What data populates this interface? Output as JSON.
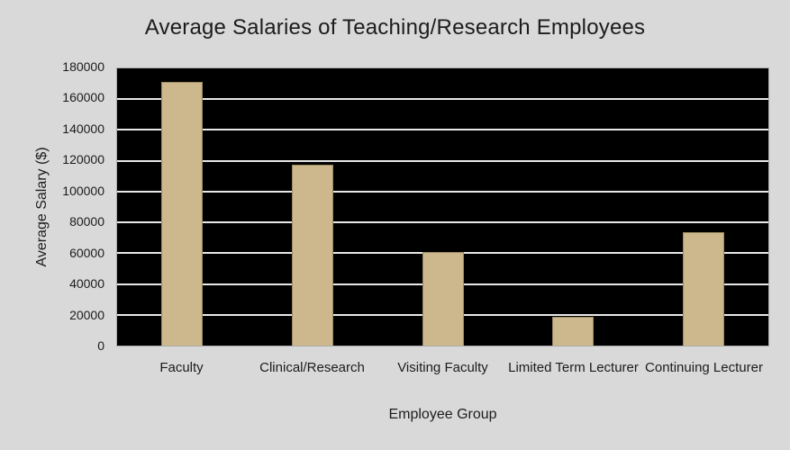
{
  "page": {
    "background_color": "#d9d9d9"
  },
  "chart_data": {
    "type": "bar",
    "title": "Average Salaries of Teaching/Research Employees",
    "xlabel": "Employee Group",
    "ylabel": "Average Salary ($)",
    "categories": [
      "Faculty",
      "Clinical/Research",
      "Visiting Faculty",
      "Limited Term Lecturer",
      "Continuing Lecturer"
    ],
    "values": [
      171000,
      117500,
      61000,
      18500,
      73500
    ],
    "ylim": [
      0,
      180000
    ],
    "yticks": [
      0,
      20000,
      40000,
      60000,
      80000,
      100000,
      120000,
      140000,
      160000,
      180000
    ],
    "grid": true,
    "legend": "none",
    "colors": {
      "canvas_bg": "#d9d9d9",
      "plot_bg": "#000000",
      "bar_fill": "#cdb78c",
      "bar_edge": "#9c8a63",
      "gridline": "#e8e8e8",
      "text": "#1c1c1c"
    }
  }
}
